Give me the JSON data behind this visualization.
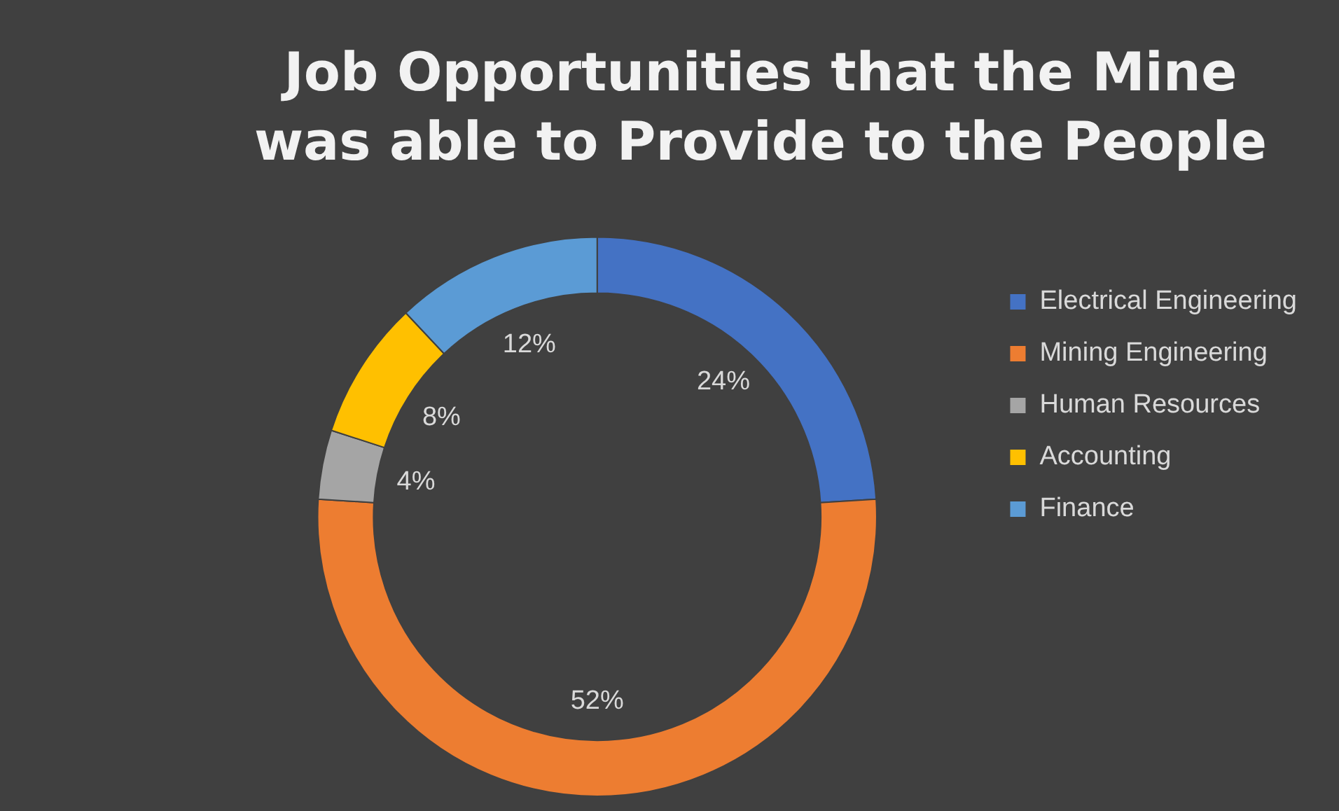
{
  "chart_data": {
    "type": "donut",
    "title": "Job Opportunities that the Mine was able to Provide to the People",
    "categories": [
      "Electrical Engineering",
      "Mining Engineering",
      "Human Resources",
      "Accounting",
      "Finance"
    ],
    "values": [
      24,
      52,
      4,
      8,
      12
    ],
    "colors": [
      "#4472c4",
      "#ed7d31",
      "#a5a5a5",
      "#ffc000",
      "#5b9bd5"
    ],
    "value_labels": [
      "24%",
      "52%",
      "4%",
      "8%",
      "12%"
    ],
    "legend": "right"
  }
}
